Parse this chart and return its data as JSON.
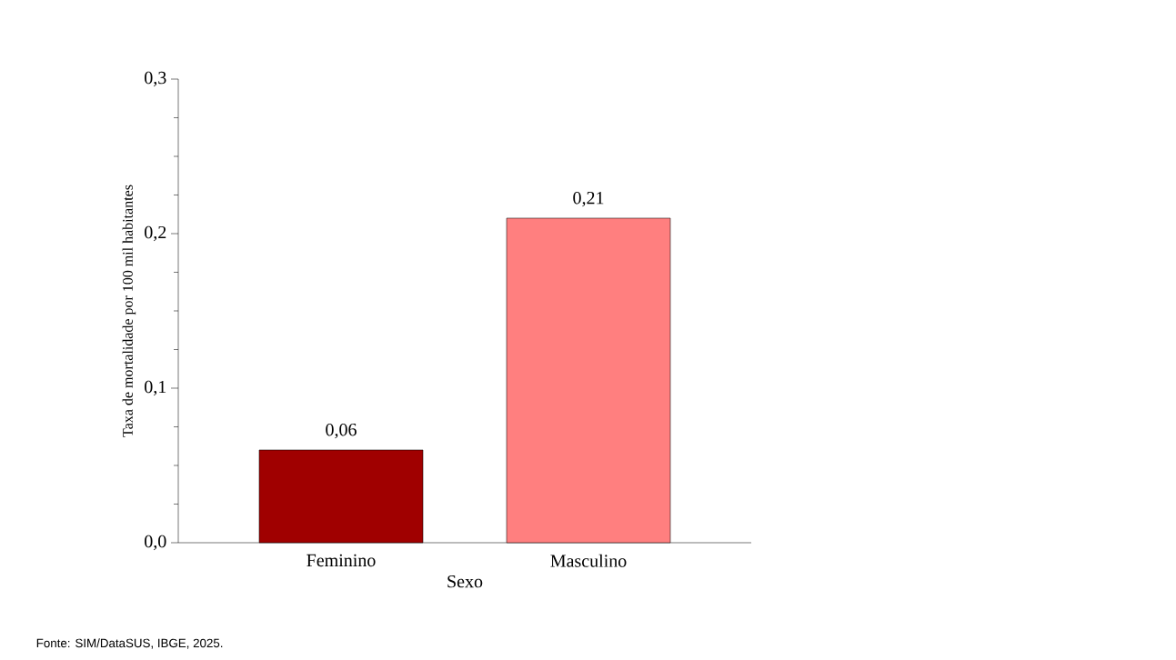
{
  "chart_data": {
    "type": "bar",
    "xlabel": "Sexo",
    "ylabel": "Taxa de mortalidade por 100 mil habitantes",
    "categories": [
      "Feminino",
      "Masculino"
    ],
    "values": [
      0.06,
      0.21
    ],
    "colors": [
      "#a00000",
      "#ff7f7f"
    ],
    "value_labels": [
      "0,06",
      "0,21"
    ],
    "ylim": [
      0,
      0.3
    ],
    "yticks": [
      {
        "value": 0,
        "label": "0,0"
      },
      {
        "value": 0.025,
        "label": null
      },
      {
        "value": 0.05,
        "label": null
      },
      {
        "value": 0.075,
        "label": null
      },
      {
        "value": 0.1,
        "label": "0,1"
      },
      {
        "value": 0.125,
        "label": null
      },
      {
        "value": 0.15,
        "label": null
      },
      {
        "value": 0.175,
        "label": null
      },
      {
        "value": 0.2,
        "label": "0,2"
      },
      {
        "value": 0.225,
        "label": null
      },
      {
        "value": 0.25,
        "label": null
      },
      {
        "value": 0.275,
        "label": null
      },
      {
        "value": 0.3,
        "label": "0,3"
      }
    ],
    "annotations": [
      "Fonte: SIM/DataSUS, IBGE, 2025."
    ]
  }
}
